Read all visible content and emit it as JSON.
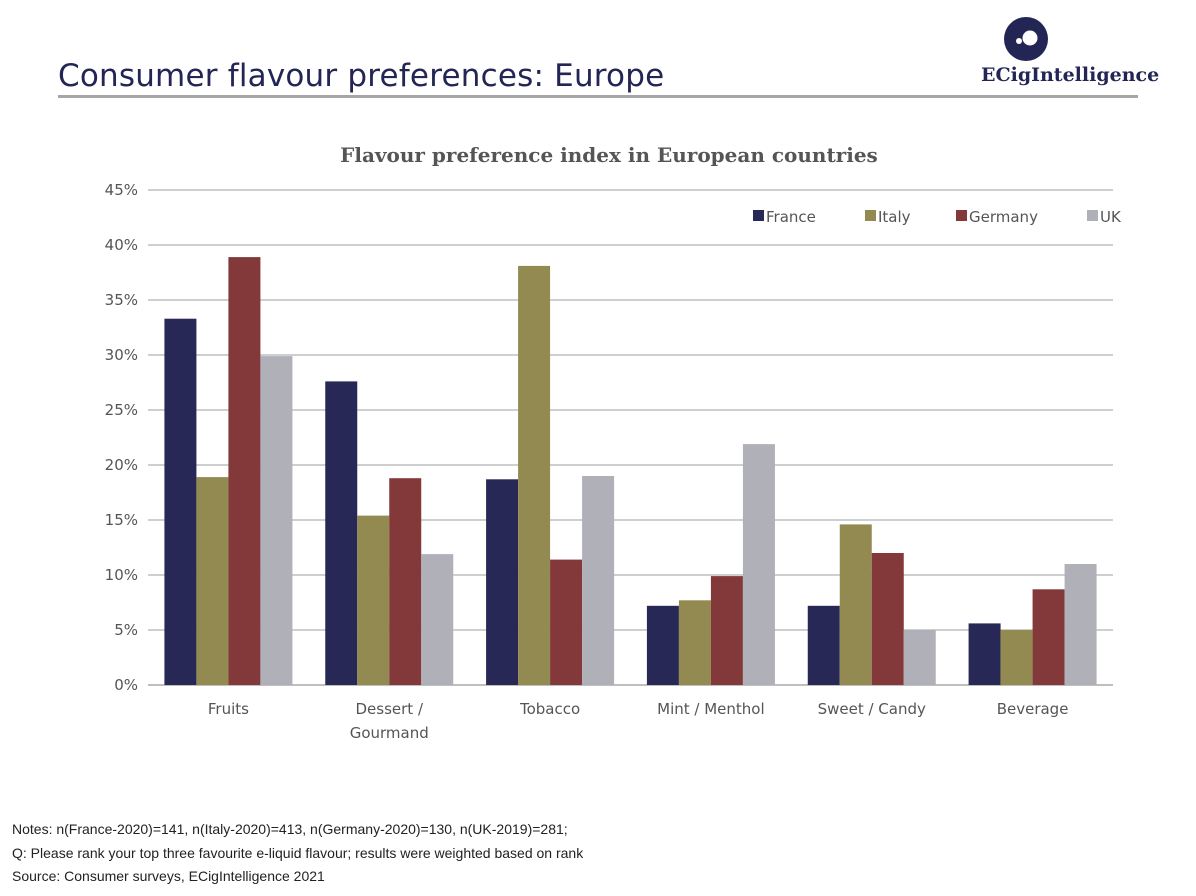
{
  "header": {
    "title": "Consumer flavour preferences: Europe",
    "brand": "ECigIntelligence",
    "brand_color": "#232654"
  },
  "chart_data": {
    "type": "bar",
    "title": "Flavour preference index in European countries",
    "xlabel": "",
    "ylabel": "",
    "ylim": [
      0,
      45
    ],
    "yticks": [
      "0%",
      "5%",
      "10%",
      "15%",
      "20%",
      "25%",
      "30%",
      "35%",
      "40%",
      "45%"
    ],
    "grid": true,
    "legend": "top-right",
    "categories": [
      [
        "Fruits"
      ],
      [
        "Dessert /",
        "Gourmand"
      ],
      [
        "Tobacco"
      ],
      [
        "Mint / Menthol"
      ],
      [
        "Sweet / Candy"
      ],
      [
        "Beverage"
      ]
    ],
    "series": [
      {
        "name": "France",
        "color": "#282856",
        "values": [
          33.3,
          27.6,
          18.7,
          7.2,
          7.2,
          5.6
        ]
      },
      {
        "name": "Italy",
        "color": "#938a52",
        "values": [
          18.9,
          15.4,
          38.1,
          7.7,
          14.6,
          5.0
        ]
      },
      {
        "name": "Germany",
        "color": "#83383a",
        "values": [
          38.9,
          18.8,
          11.4,
          9.9,
          12.0,
          8.7
        ]
      },
      {
        "name": "UK",
        "color": "#b0b0b8",
        "values": [
          29.9,
          11.9,
          19.0,
          21.9,
          5.0,
          11.0
        ]
      }
    ]
  },
  "notes": {
    "line1": "Notes: n(France-2020)=141, n(Italy-2020)=413, n(Germany-2020)=130, n(UK-2019)=281;",
    "line2": "Q: Please rank your top three favourite e-liquid flavour; results were weighted based on rank",
    "line3": "Source: Consumer surveys, ECigIntelligence 2021"
  }
}
